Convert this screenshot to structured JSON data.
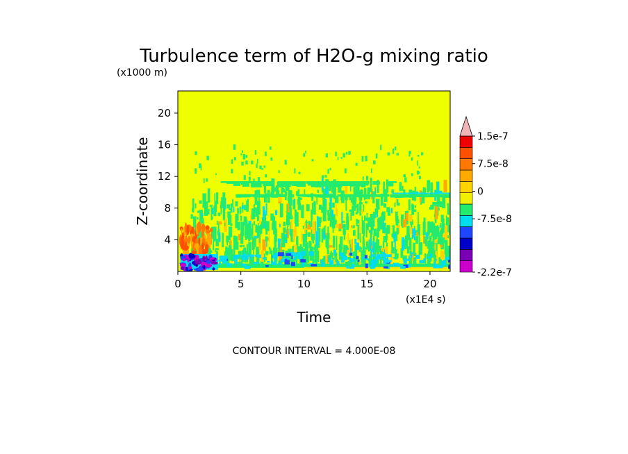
{
  "chart_data": {
    "type": "heatmap",
    "title": "Turbulence term of H2O-g mixing ratio",
    "y_unit_note": "(x1000 m)",
    "x_unit_note": "(x1E4 s)",
    "xlabel": "Time",
    "ylabel": "Z-coordinate",
    "xlim": [
      0,
      21.6
    ],
    "ylim": [
      0,
      22.8
    ],
    "x_ticks": [
      {
        "value": 0,
        "label": "0"
      },
      {
        "value": 5,
        "label": "5"
      },
      {
        "value": 10,
        "label": "10"
      },
      {
        "value": 15,
        "label": "15"
      },
      {
        "value": 20,
        "label": "20"
      }
    ],
    "y_ticks": [
      {
        "value": 4,
        "label": "4"
      },
      {
        "value": 8,
        "label": "8"
      },
      {
        "value": 12,
        "label": "12"
      },
      {
        "value": 16,
        "label": "16"
      },
      {
        "value": 20,
        "label": "20"
      }
    ],
    "background_level_color": "#eeff00",
    "colorbar": {
      "levels": [
        "#cc00cc",
        "#7a00b4",
        "#0000c8",
        "#1e46ff",
        "#00dcf0",
        "#23eb6e",
        "#f0f000",
        "#ffd200",
        "#ffaa00",
        "#ff7800",
        "#ff5000",
        "#f00000"
      ],
      "extend_top_color": "#f2b5b5",
      "labels": [
        {
          "label": "1.5e-7",
          "value": 1.5e-07
        },
        {
          "label": "7.5e-8",
          "value": 7.5e-08
        },
        {
          "label": "0",
          "value": 0
        },
        {
          "label": "-7.5e-8",
          "value": -7.5e-08
        },
        {
          "label": "-2.2e-7",
          "value": -2.2e-07
        }
      ],
      "min": -2.2e-07,
      "max": 1.5e-07
    },
    "features": [
      {
        "desc": "negative (cyan/blue/purple) near-surface turbulence",
        "x_range": [
          0.3,
          3.0
        ],
        "z_range": [
          0.2,
          2.2
        ],
        "level": "negative"
      },
      {
        "desc": "positive (orange/red) layer early in run",
        "x_range": [
          0.3,
          2.5
        ],
        "z_range": [
          2.2,
          5.5
        ],
        "level": "positive"
      },
      {
        "desc": "weak negative (green) streaks through lower troposphere",
        "x_range": [
          1,
          21.6
        ],
        "z_range": [
          0.5,
          10.5
        ],
        "level": "weak-negative"
      },
      {
        "desc": "persistent green band near z≈9.5",
        "x_range": [
          4.5,
          21.6
        ],
        "z_range": [
          9.2,
          9.8
        ],
        "level": "weak-negative"
      },
      {
        "desc": "green band near surface",
        "x_range": [
          3,
          21.6
        ],
        "z_range": [
          0.5,
          1.0
        ],
        "level": "weak-negative"
      }
    ],
    "contour_interval_text": "CONTOUR INTERVAL = 4.000E-08"
  }
}
